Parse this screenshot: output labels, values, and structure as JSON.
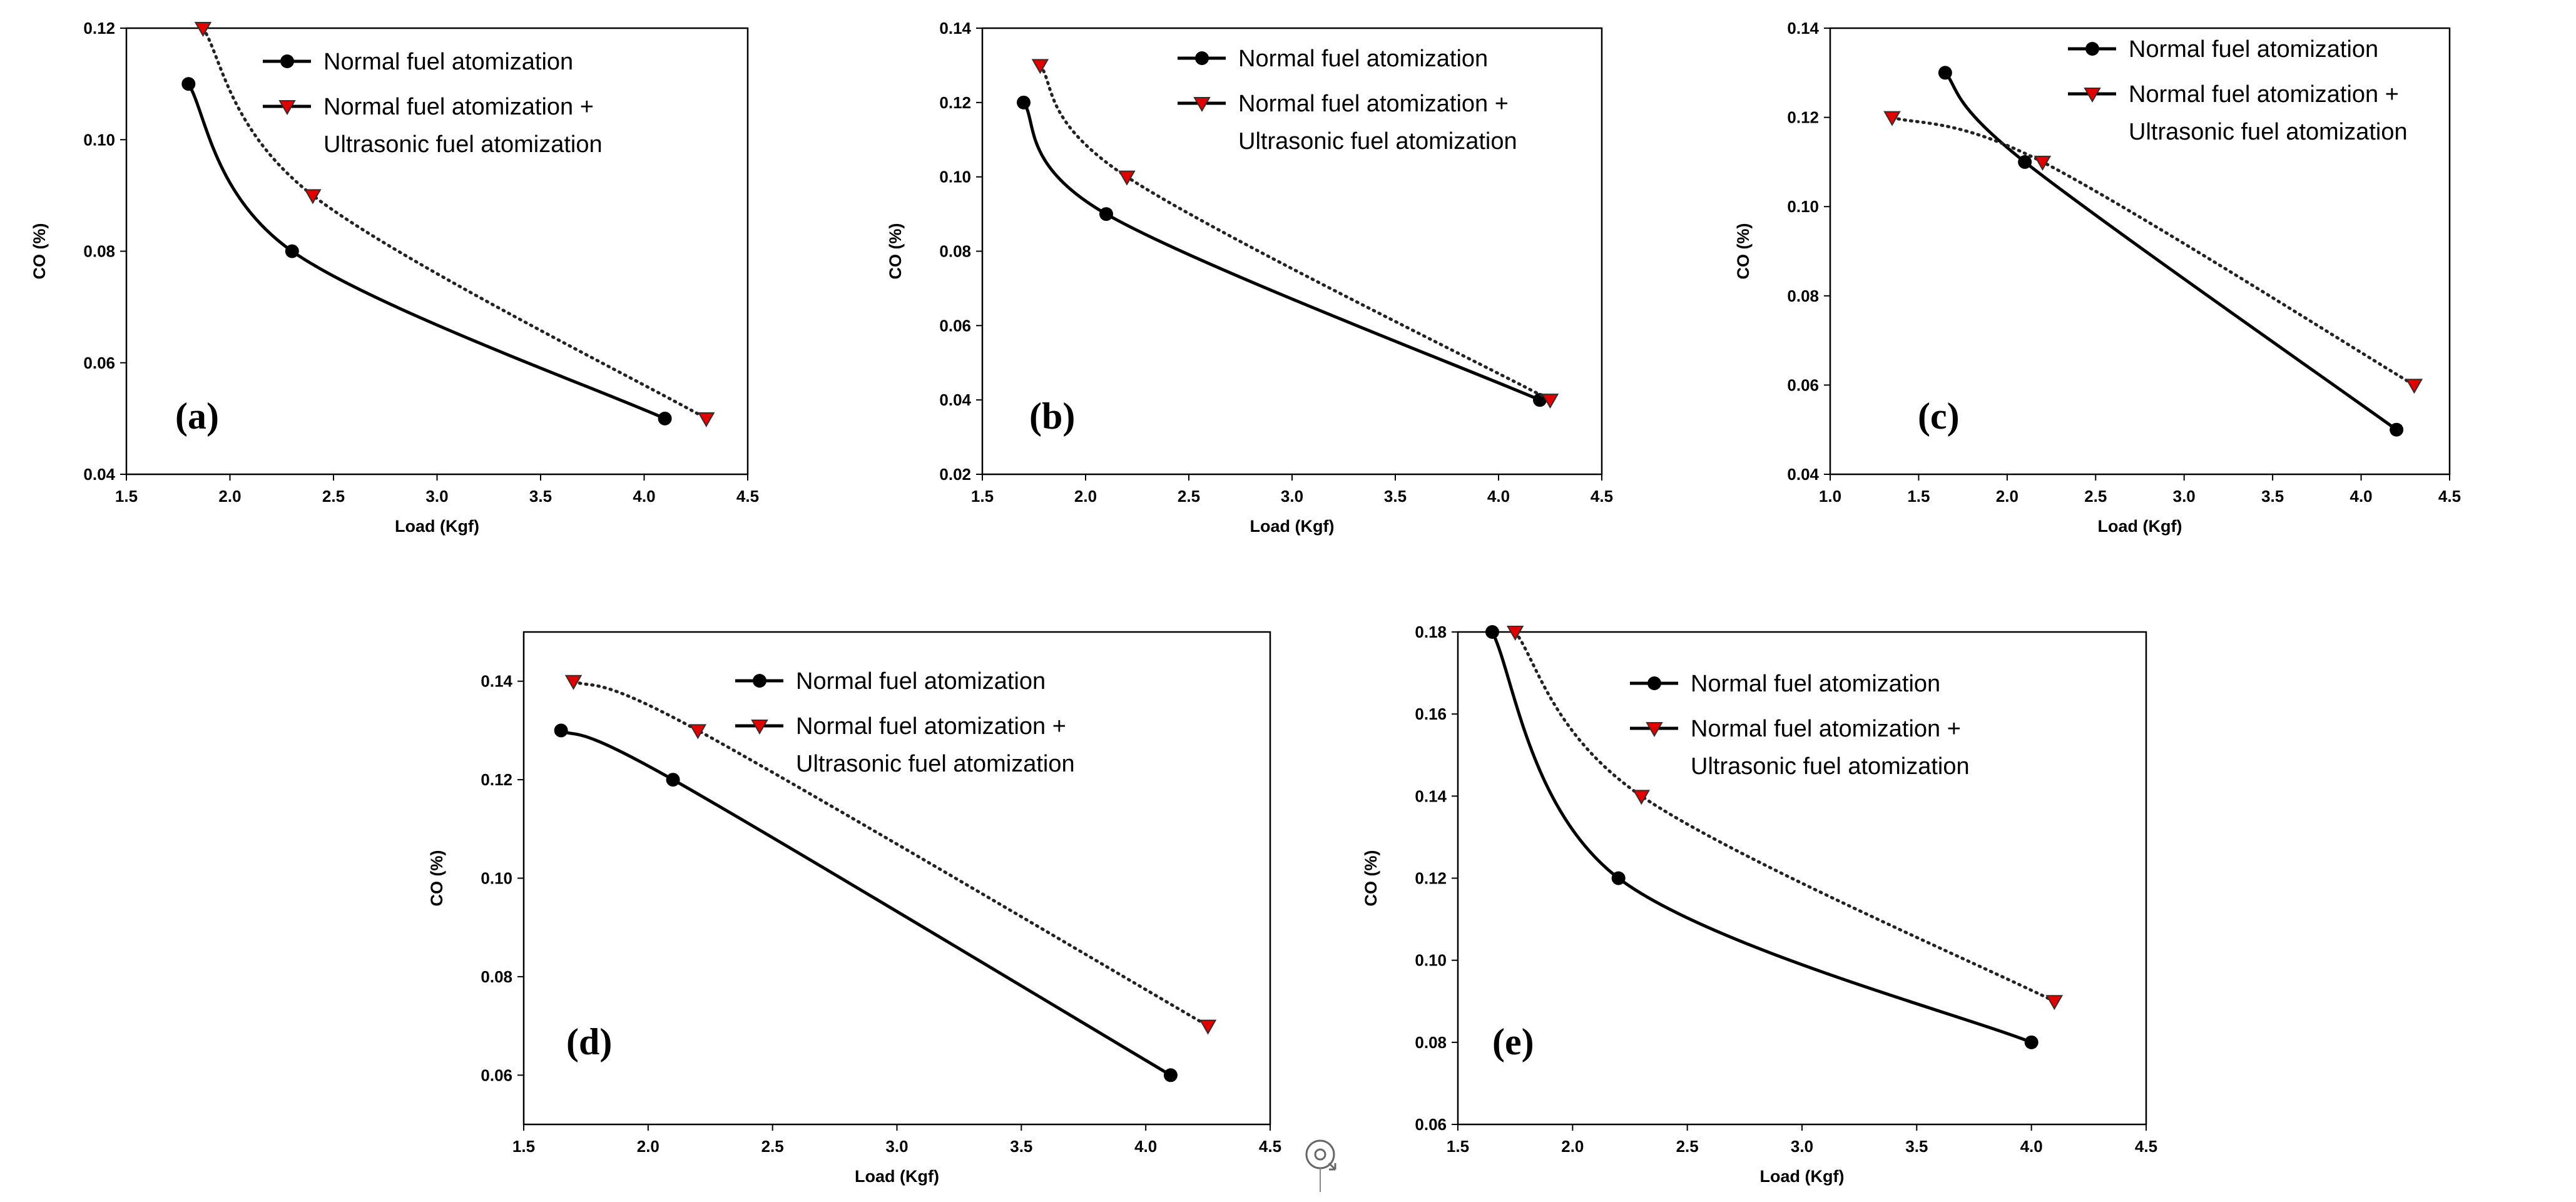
{
  "colors": {
    "normal": "#000000",
    "ultrasonic_fill": "#e00000",
    "ultrasonic_line": "#3a2a2a"
  },
  "icons": {
    "marker_normal": "filled-circle-icon",
    "marker_ultrasonic": "red-down-triangle-icon",
    "watermark": "refresh-icon"
  },
  "chart_data": [
    {
      "panel_label": "(a)",
      "type": "line",
      "xlabel": "Load (Kgf)",
      "ylabel": "CO (%)",
      "xlim": [
        1.5,
        4.5
      ],
      "ylim": [
        0.04,
        0.12
      ],
      "xticks": [
        "1.5",
        "2.0",
        "2.5",
        "3.0",
        "3.5",
        "4.0",
        "4.5"
      ],
      "yticks": [
        "0.04",
        "0.06",
        "0.08",
        "0.10",
        "0.12"
      ],
      "series": [
        {
          "name": "Normal fuel atomization",
          "style": "solid",
          "marker": "circle",
          "x": [
            1.8,
            2.3,
            4.1
          ],
          "y": [
            0.11,
            0.08,
            0.05
          ]
        },
        {
          "name": "Normal fuel atomization + Ultrasonic fuel atomization",
          "legend_lines": [
            "Normal fuel atomization +",
            "Ultrasonic fuel atomization"
          ],
          "style": "dotted",
          "marker": "triangle-down",
          "x": [
            1.87,
            2.4,
            4.3
          ],
          "y": [
            0.12,
            0.09,
            0.05
          ]
        }
      ]
    },
    {
      "panel_label": "(b)",
      "type": "line",
      "xlabel": "Load (Kgf)",
      "ylabel": "CO (%)",
      "xlim": [
        1.5,
        4.5
      ],
      "ylim": [
        0.02,
        0.14
      ],
      "xticks": [
        "1.5",
        "2.0",
        "2.5",
        "3.0",
        "3.5",
        "4.0",
        "4.5"
      ],
      "yticks": [
        "0.02",
        "0.04",
        "0.06",
        "0.08",
        "0.10",
        "0.12",
        "0.14"
      ],
      "series": [
        {
          "name": "Normal fuel atomization",
          "style": "solid",
          "marker": "circle",
          "x": [
            1.7,
            2.1,
            4.2
          ],
          "y": [
            0.12,
            0.09,
            0.04
          ]
        },
        {
          "name": "Normal fuel atomization + Ultrasonic fuel atomization",
          "legend_lines": [
            "Normal fuel atomization +",
            "Ultrasonic fuel atomization"
          ],
          "style": "dotted",
          "marker": "triangle-down",
          "x": [
            1.78,
            2.2,
            4.25
          ],
          "y": [
            0.13,
            0.1,
            0.04
          ]
        }
      ]
    },
    {
      "panel_label": "(c)",
      "type": "line",
      "xlabel": "Load (Kgf)",
      "ylabel": "CO (%)",
      "xlim": [
        1.0,
        4.5
      ],
      "ylim": [
        0.04,
        0.14
      ],
      "xticks": [
        "1.0",
        "1.5",
        "2.0",
        "2.5",
        "3.0",
        "3.5",
        "4.0",
        "4.5"
      ],
      "yticks": [
        "0.04",
        "0.06",
        "0.08",
        "0.10",
        "0.12",
        "0.14"
      ],
      "series": [
        {
          "name": "Normal fuel atomization",
          "style": "solid",
          "marker": "circle",
          "x": [
            1.65,
            2.1,
            4.2
          ],
          "y": [
            0.13,
            0.11,
            0.05
          ]
        },
        {
          "name": "Normal fuel atomization + Ultrasonic fuel atomization",
          "legend_lines": [
            "Normal fuel atomization +",
            "Ultrasonic fuel atomization"
          ],
          "style": "dotted",
          "marker": "triangle-down",
          "x": [
            1.35,
            2.2,
            4.3
          ],
          "y": [
            0.12,
            0.11,
            0.06
          ]
        }
      ]
    },
    {
      "panel_label": "(d)",
      "type": "line",
      "xlabel": "Load (Kgf)",
      "ylabel": "CO (%)",
      "xlim": [
        1.5,
        4.5
      ],
      "ylim": [
        0.05,
        0.15
      ],
      "xticks": [
        "1.5",
        "2.0",
        "2.5",
        "3.0",
        "3.5",
        "4.0",
        "4.5"
      ],
      "yticks": [
        "0.06",
        "0.08",
        "0.10",
        "0.12",
        "0.14"
      ],
      "series": [
        {
          "name": "Normal fuel atomization",
          "style": "solid",
          "marker": "circle",
          "x": [
            1.65,
            2.1,
            4.1
          ],
          "y": [
            0.13,
            0.12,
            0.06
          ]
        },
        {
          "name": "Normal fuel atomization + Ultrasonic fuel atomization",
          "legend_lines": [
            "Normal fuel atomization +",
            "Ultrasonic fuel atomization"
          ],
          "style": "dotted",
          "marker": "triangle-down",
          "x": [
            1.7,
            2.2,
            4.25
          ],
          "y": [
            0.14,
            0.13,
            0.07
          ]
        }
      ]
    },
    {
      "panel_label": "(e)",
      "type": "line",
      "xlabel": "Load (Kgf)",
      "ylabel": "CO (%)",
      "xlim": [
        1.5,
        4.5
      ],
      "ylim": [
        0.06,
        0.18
      ],
      "xticks": [
        "1.5",
        "2.0",
        "2.5",
        "3.0",
        "3.5",
        "4.0",
        "4.5"
      ],
      "yticks": [
        "0.06",
        "0.08",
        "0.10",
        "0.12",
        "0.14",
        "0.16",
        "0.18"
      ],
      "series": [
        {
          "name": "Normal fuel atomization",
          "style": "solid",
          "marker": "circle",
          "x": [
            1.65,
            2.2,
            4.0
          ],
          "y": [
            0.18,
            0.12,
            0.08
          ]
        },
        {
          "name": "Normal fuel atomization + Ultrasonic fuel atomization",
          "legend_lines": [
            "Normal fuel atomization +",
            "Ultrasonic fuel atomization"
          ],
          "style": "dotted",
          "marker": "triangle-down",
          "x": [
            1.75,
            2.3,
            4.1
          ],
          "y": [
            0.18,
            0.14,
            0.09
          ]
        }
      ]
    }
  ]
}
